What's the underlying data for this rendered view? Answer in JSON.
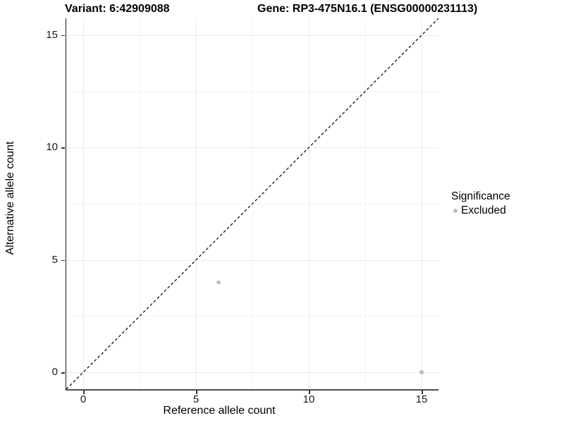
{
  "titles": {
    "variant": "Variant: 6:42909088",
    "gene": "Gene: RP3-475N16.1 (ENSG00000231113)"
  },
  "legend": {
    "title": "Significance",
    "items": [
      {
        "label": "Excluded",
        "color": "#bdbdbd"
      }
    ],
    "position": "right"
  },
  "chart_data": {
    "type": "scatter",
    "xlabel": "Reference allele count",
    "ylabel": "Alternative allele count",
    "xlim": [
      -0.75,
      15.75
    ],
    "ylim": [
      -0.75,
      15.75
    ],
    "x_ticks": [
      0,
      5,
      10,
      15
    ],
    "y_ticks": [
      0,
      5,
      10,
      15
    ],
    "x_minor_ticks": [
      2.5,
      7.5,
      12.5
    ],
    "y_minor_ticks": [
      2.5,
      7.5,
      12.5
    ],
    "grid": true,
    "identity_line": {
      "type": "dashed",
      "equation": "y = x",
      "color": "#000000"
    },
    "series": [
      {
        "name": "Excluded",
        "color": "#bdbdbd",
        "points": [
          {
            "x": 6,
            "y": 4
          },
          {
            "x": 15,
            "y": 0
          }
        ]
      }
    ]
  }
}
